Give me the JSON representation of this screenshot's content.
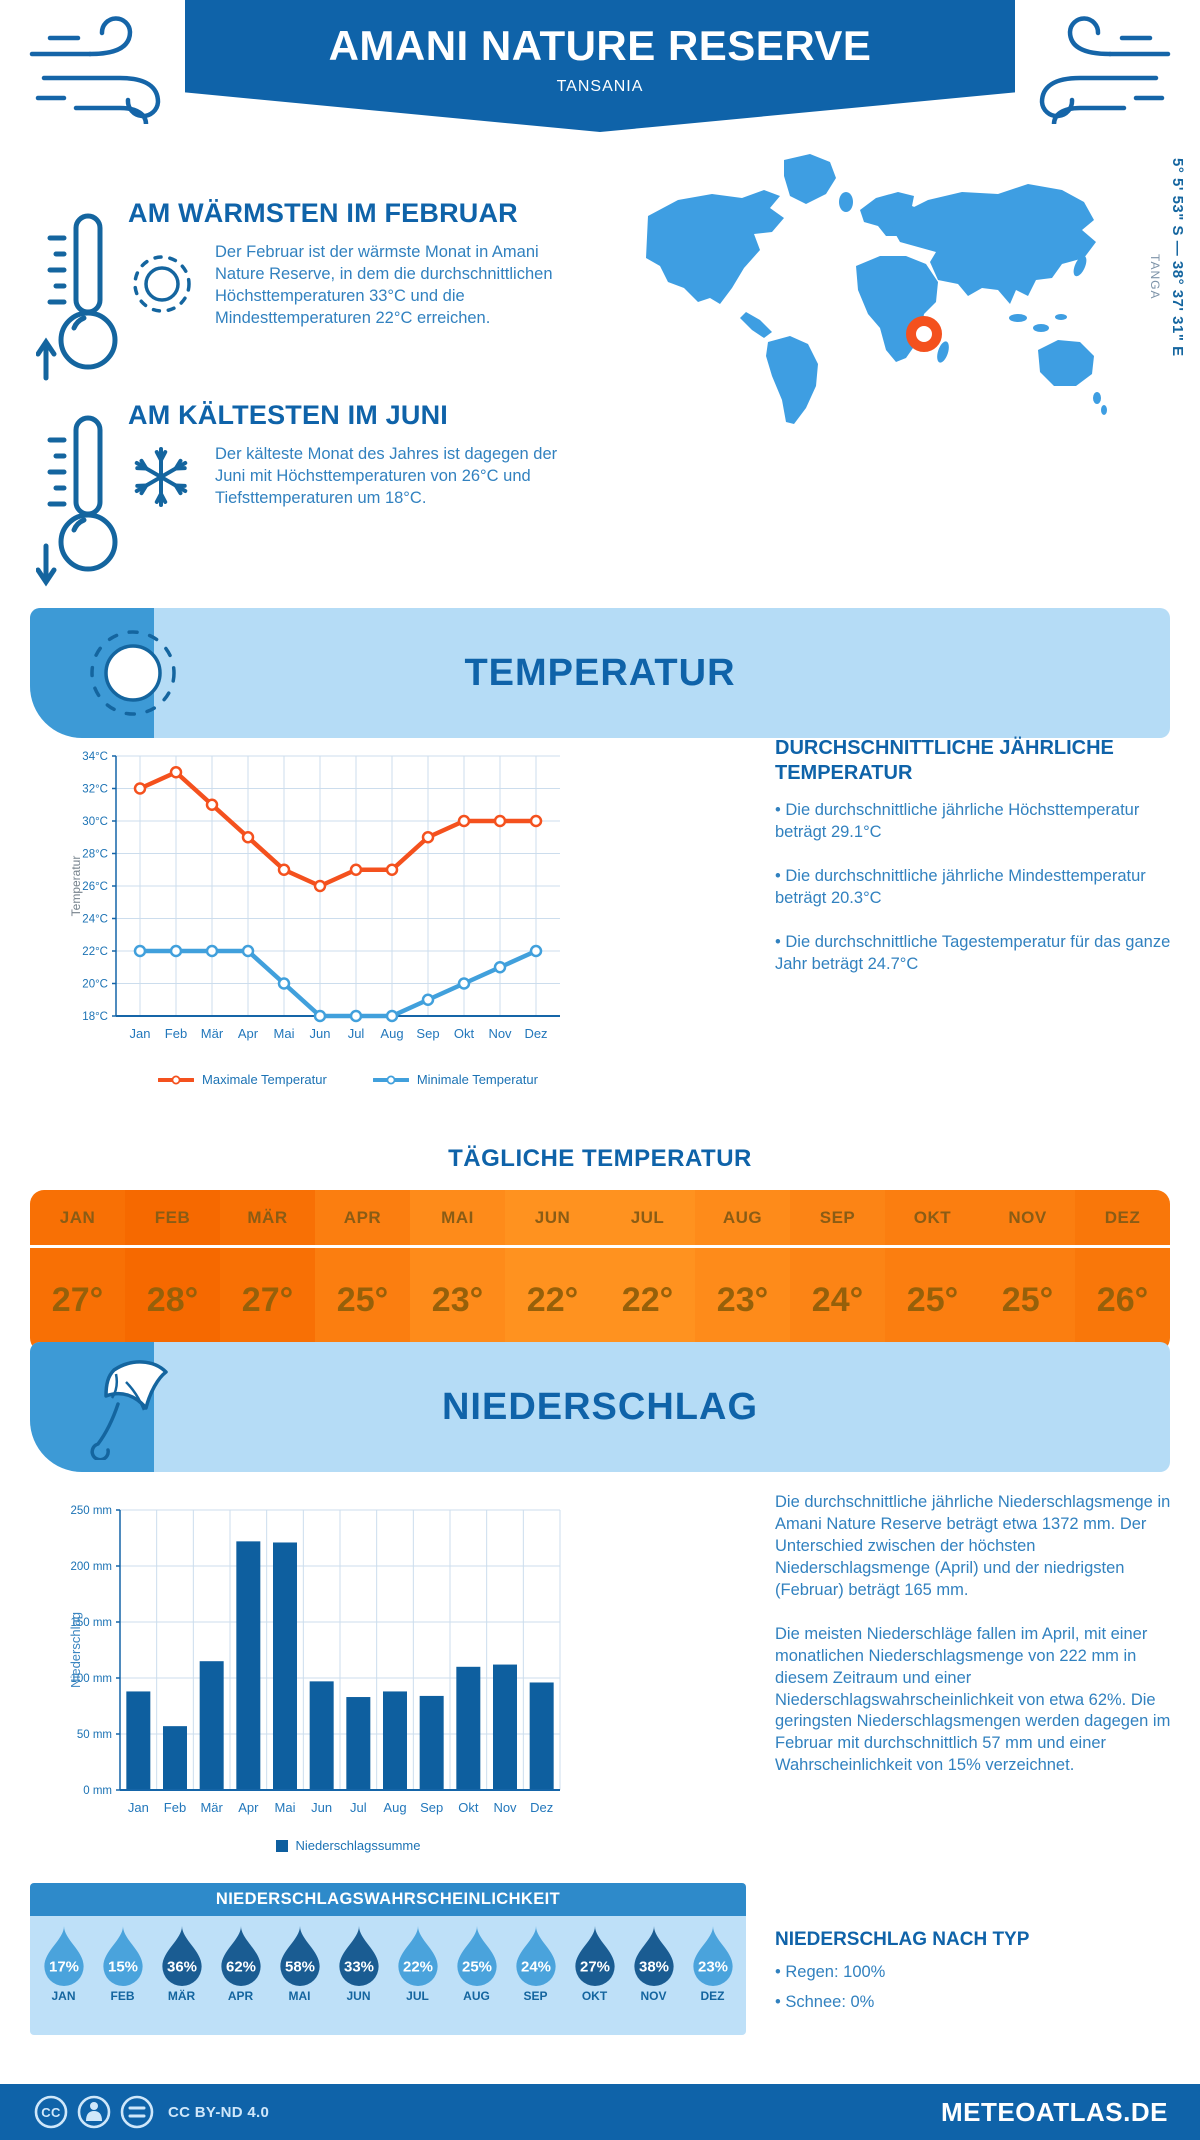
{
  "header": {
    "title": "AMANI NATURE RESERVE",
    "subtitle": "TANSANIA"
  },
  "location": {
    "region": "TANGA",
    "coordinates": "5° 5' 53\" S — 38° 37' 31\" E"
  },
  "warmest": {
    "heading": "AM WÄRMSTEN IM FEBRUAR",
    "text": "Der Februar ist der wärmste Monat in Amani Nature Reserve, in dem die durchschnittlichen Höchsttemperaturen 33°C und die Mindesttemperaturen 22°C erreichen."
  },
  "coldest": {
    "heading": "AM KÄLTESTEN IM JUNI",
    "text": "Der kälteste Monat des Jahres ist dagegen der Juni mit Höchsttemperaturen von 26°C und Tiefsttemperaturen um 18°C."
  },
  "temperature": {
    "banner": "TEMPERATUR",
    "annual_heading": "DURCHSCHNITTLICHE JÄHRLICHE TEMPERATUR",
    "annual_bullets": [
      "Die durchschnittliche jährliche Höchsttemperatur beträgt 29.1°C",
      "Die durchschnittliche jährliche Mindesttemperatur beträgt 20.3°C",
      "Die durchschnittliche Tagestemperatur für das ganze Jahr beträgt 24.7°C"
    ],
    "daily_heading": "TÄGLICHE TEMPERATUR",
    "daily_months": [
      "JAN",
      "FEB",
      "MÄR",
      "APR",
      "MAI",
      "JUN",
      "JUL",
      "AUG",
      "SEP",
      "OKT",
      "NOV",
      "DEZ"
    ],
    "daily_values": [
      27,
      28,
      27,
      25,
      23,
      22,
      22,
      23,
      24,
      25,
      25,
      26
    ]
  },
  "precipitation": {
    "banner": "NIEDERSCHLAG",
    "paragraphs": [
      "Die durchschnittliche jährliche Niederschlagsmenge in Amani Nature Reserve beträgt etwa 1372 mm. Der Unterschied zwischen der höchsten Niederschlagsmenge (April) und der niedrigsten (Februar) beträgt 165 mm.",
      "Die meisten Niederschläge fallen im April, mit einer monatlichen Niederschlagsmenge von 222 mm in diesem Zeitraum und einer Niederschlagswahrscheinlichkeit von etwa 62%. Die geringsten Niederschlagsmengen werden dagegen im Februar mit durchschnittlich 57 mm und einer Wahrscheinlichkeit von 15% verzeichnet."
    ],
    "type_heading": "NIEDERSCHLAG NACH TYP",
    "type_bullets": [
      "Regen: 100%",
      "Schnee: 0%"
    ],
    "probability": {
      "heading": "NIEDERSCHLAGSWAHRSCHEINLICHKEIT",
      "months": [
        "JAN",
        "FEB",
        "MÄR",
        "APR",
        "MAI",
        "JUN",
        "JUL",
        "AUG",
        "SEP",
        "OKT",
        "NOV",
        "DEZ"
      ],
      "values": [
        17,
        15,
        36,
        62,
        58,
        33,
        22,
        25,
        24,
        27,
        38,
        23
      ]
    }
  },
  "chart_data": [
    {
      "type": "line",
      "title": "",
      "categories": [
        "Jan",
        "Feb",
        "Mär",
        "Apr",
        "Mai",
        "Jun",
        "Jul",
        "Aug",
        "Sep",
        "Okt",
        "Nov",
        "Dez"
      ],
      "series": [
        {
          "name": "Maximale Temperatur",
          "color": "#f4511e",
          "values": [
            32,
            33,
            31,
            29,
            27,
            26,
            27,
            27,
            29,
            30,
            30,
            30
          ]
        },
        {
          "name": "Minimale Temperatur",
          "color": "#41a0dc",
          "values": [
            22,
            22,
            22,
            22,
            20,
            18,
            18,
            18,
            19,
            20,
            21,
            22
          ]
        }
      ],
      "xlabel": "",
      "ylabel": "Temperatur",
      "ylim": [
        18,
        34
      ],
      "ytick_step": 2,
      "ytick_suffix": "°C",
      "grid": true,
      "legend_position": "bottom"
    },
    {
      "type": "bar",
      "title": "",
      "categories": [
        "Jan",
        "Feb",
        "Mär",
        "Apr",
        "Mai",
        "Jun",
        "Jul",
        "Aug",
        "Sep",
        "Okt",
        "Nov",
        "Dez"
      ],
      "series": [
        {
          "name": "Niederschlagssumme",
          "color": "#0e5f9f",
          "values": [
            88,
            57,
            115,
            222,
            221,
            97,
            83,
            88,
            84,
            110,
            112,
            96
          ]
        }
      ],
      "xlabel": "",
      "ylabel": "Niederschlag",
      "ylim": [
        0,
        250
      ],
      "ytick_step": 50,
      "ytick_suffix": " mm",
      "grid": true,
      "legend_position": "bottom"
    }
  ],
  "footer": {
    "license": "CC BY-ND 4.0",
    "site": "METEOATLAS.DE"
  },
  "colors": {
    "primary": "#0f63a9",
    "banner_bg": "#b5dcf6",
    "banner_accent": "#3d9ad6",
    "map": "#3e9ee2",
    "marker": "#f4511e",
    "max_line": "#f4511e",
    "min_line": "#41a0dc",
    "bar": "#0e5f9f",
    "drop_light": "#4aa3dc",
    "drop_dark": "#1a5c92",
    "prob_header": "#2e8aca",
    "prob_body": "#bee0f8",
    "table_warm": "#f66900",
    "table_cool": "#ff921f"
  }
}
